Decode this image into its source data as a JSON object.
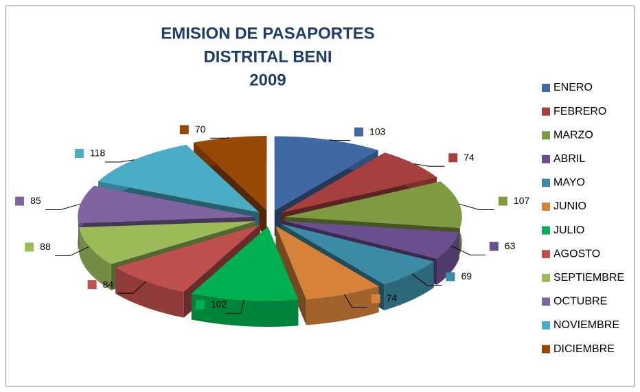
{
  "chart_data": {
    "type": "pie3d",
    "title": [
      "EMISION DE PASAPORTES",
      "DISTRITAL BENI",
      "2009"
    ],
    "categories": [
      "ENERO",
      "FEBRERO",
      "MARZO",
      "ABRIL",
      "MAYO",
      "JUNIO",
      "JULIO",
      "AGOSTO",
      "SEPTIEMBRE",
      "OCTUBRE",
      "NOVIEMBRE",
      "DICIEMBRE"
    ],
    "values": [
      103,
      74,
      107,
      63,
      69,
      74,
      102,
      84,
      88,
      85,
      118,
      70
    ],
    "colors": [
      "#4068a4",
      "#a63f3d",
      "#7f9b42",
      "#6a4f8e",
      "#3a8ba3",
      "#d6823a",
      "#00b050",
      "#c0504d",
      "#9bbb59",
      "#8064a2",
      "#4bacc6",
      "#984807"
    ],
    "legend": "right"
  }
}
